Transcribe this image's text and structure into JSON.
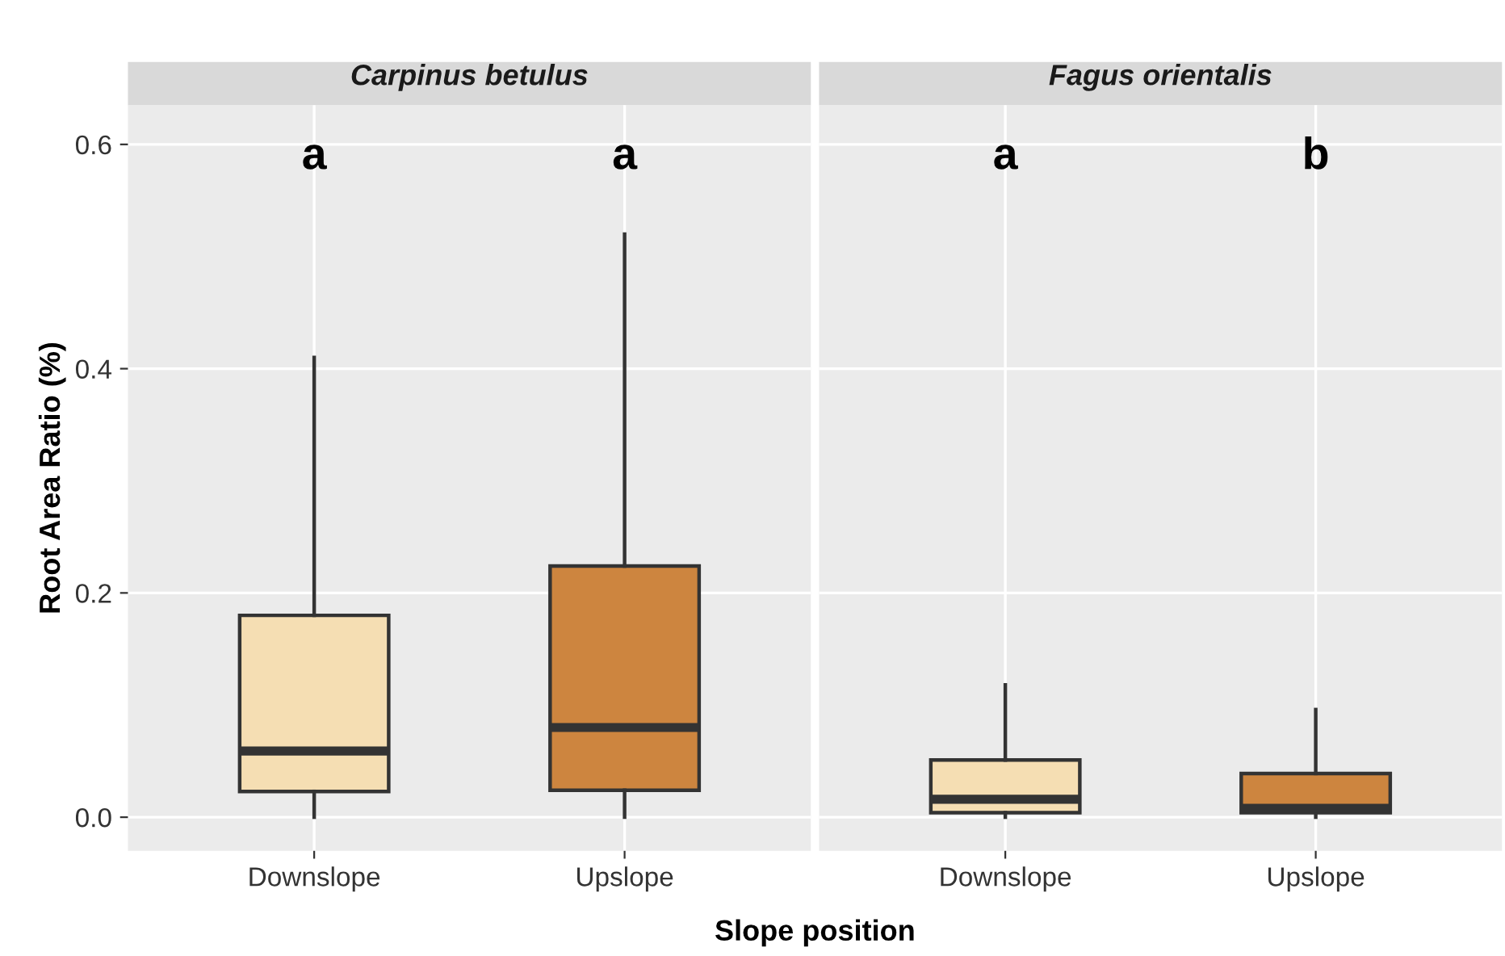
{
  "chart_data": [
    {
      "type": "box",
      "title": "Carpinus betulus",
      "xlabel": "Slope position",
      "ylabel": "Root Area Ratio (%)",
      "categories": [
        "Downslope",
        "Upslope"
      ],
      "colors": [
        "#f5deb3",
        "#cd853f"
      ],
      "ylim": [
        -0.03,
        0.635
      ],
      "yticks": [
        {
          "value": 0.0,
          "label": "0.0"
        },
        {
          "value": 0.2,
          "label": "0.2"
        },
        {
          "value": 0.4,
          "label": "0.4"
        },
        {
          "value": 0.6,
          "label": "0.6"
        }
      ],
      "grid": true,
      "boxes": [
        {
          "low": 0.0,
          "q1": 0.023,
          "median": 0.059,
          "q3": 0.18,
          "high": 0.41
        },
        {
          "low": 0.0,
          "q1": 0.024,
          "median": 0.08,
          "q3": 0.224,
          "high": 0.52
        }
      ],
      "annotations": [
        "a",
        "a"
      ]
    },
    {
      "type": "box",
      "title": "Fagus orientalis",
      "categories": [
        "Downslope",
        "Upslope"
      ],
      "colors": [
        "#f5deb3",
        "#cd853f"
      ],
      "ylim": [
        -0.03,
        0.635
      ],
      "yticks": [
        0,
        0.2,
        0.4,
        0.6
      ],
      "grid": true,
      "tick_labels": "x",
      "boxes": [
        {
          "low": 0.0,
          "q1": 0.004,
          "median": 0.016,
          "q3": 0.051,
          "high": 0.118
        },
        {
          "low": 0.0,
          "q1": 0.004,
          "median": 0.008,
          "q3": 0.039,
          "high": 0.096
        }
      ],
      "annotations": [
        "a",
        "b"
      ]
    }
  ]
}
